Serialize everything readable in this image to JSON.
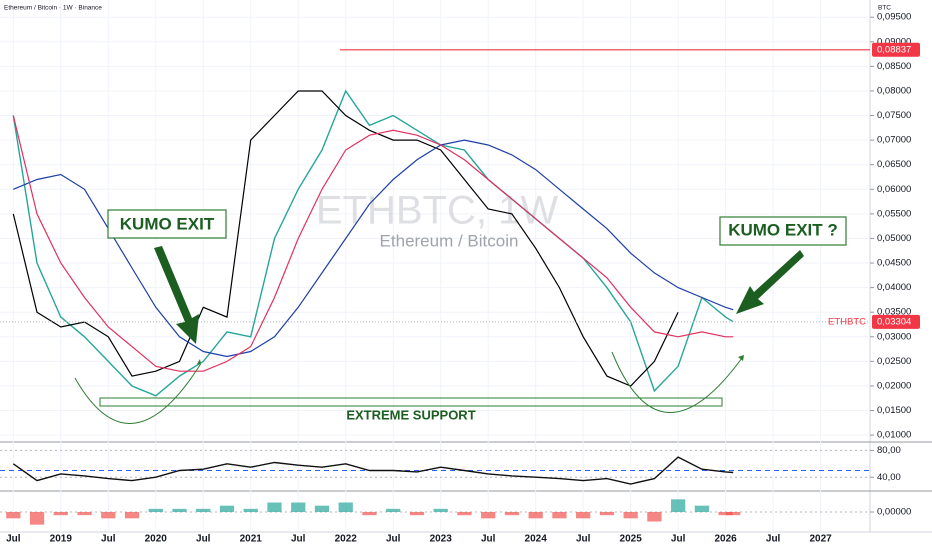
{
  "header": {
    "title": "Ethereum / Bitcoin · 1W · Binance",
    "unit": "BTC",
    "watermark": "ETHBTC, 1W",
    "watermark_subtitle": "Ethereum / Bitcoin"
  },
  "annotations": {
    "left": "KUMO EXIT",
    "right": "KUMO EXIT ?",
    "support": "EXTREME SUPPORT"
  },
  "chart_data": [
    {
      "type": "line",
      "x": [
        2018.5,
        2018.75,
        2019,
        2019.25,
        2019.5,
        2019.75,
        2020,
        2020.25,
        2020.5,
        2020.75,
        2021,
        2021.25,
        2021.5,
        2021.75,
        2022,
        2022.25,
        2022.5,
        2022.75,
        2023,
        2023.25,
        2023.5,
        2023.75,
        2024,
        2024.25,
        2024.5,
        2024.75,
        2025,
        2025.25,
        2025.5,
        2025.75,
        2026,
        2026.08
      ],
      "series": [
        {
          "name": "ETHBTC",
          "color": "#26a69a",
          "values": [
            0.075,
            0.045,
            0.034,
            0.03,
            0.025,
            0.02,
            0.018,
            0.022,
            0.025,
            0.031,
            0.03,
            0.05,
            0.06,
            0.068,
            0.08,
            0.073,
            0.075,
            0.072,
            0.069,
            0.068,
            0.062,
            0.058,
            0.054,
            0.05,
            0.046,
            0.04,
            0.033,
            0.019,
            0.024,
            0.038,
            0.034,
            0.03304
          ]
        },
        {
          "color": "#000000",
          "values": [
            0.055,
            0.035,
            0.032,
            0.033,
            0.03,
            0.022,
            0.023,
            0.025,
            0.036,
            0.034,
            0.07,
            0.075,
            0.08,
            0.08,
            0.075,
            0.072,
            0.07,
            0.07,
            0.068,
            0.062,
            0.056,
            0.055,
            0.048,
            0.04,
            0.03,
            0.022,
            0.02,
            0.025,
            0.035,
            null,
            null,
            null
          ]
        },
        {
          "color": "#1e3fa8",
          "values": [
            0.06,
            0.062,
            0.063,
            0.06,
            0.052,
            0.044,
            0.036,
            0.03,
            0.027,
            0.026,
            0.027,
            0.03,
            0.036,
            0.043,
            0.05,
            0.057,
            0.062,
            0.066,
            0.069,
            0.07,
            0.069,
            0.067,
            0.064,
            0.06,
            0.056,
            0.052,
            0.047,
            0.043,
            0.04,
            0.038,
            0.036,
            0.0355
          ]
        },
        {
          "color": "#e0315e",
          "values": [
            0.075,
            0.055,
            0.045,
            0.038,
            0.032,
            0.028,
            0.024,
            0.023,
            0.023,
            0.025,
            0.028,
            0.038,
            0.05,
            0.06,
            0.068,
            0.071,
            0.072,
            0.071,
            0.069,
            0.066,
            0.062,
            0.058,
            0.054,
            0.05,
            0.046,
            0.042,
            0.036,
            0.031,
            0.03,
            0.031,
            0.03,
            0.03
          ]
        }
      ],
      "xlim": [
        2018.36,
        2027.52
      ],
      "xticks": [
        {
          "value": 2018.5,
          "label": "Jul"
        },
        2019,
        {
          "value": 2019.5,
          "label": "Jul"
        },
        2020,
        {
          "value": 2020.5,
          "label": "Jul"
        },
        2021,
        {
          "value": 2021.5,
          "label": "Jul"
        },
        2022,
        {
          "value": 2022.5,
          "label": "Jul"
        },
        2023,
        {
          "value": 2023.5,
          "label": "Jul"
        },
        2024,
        {
          "value": 2024.5,
          "label": "Jul"
        },
        2025,
        {
          "value": 2025.5,
          "label": "Jul"
        },
        2026,
        {
          "value": 2026.5,
          "label": "Jul"
        },
        2027
      ],
      "ylim": [
        0.0086,
        0.0985
      ],
      "yticks": [
        {
          "value": 0.01,
          "label": "0,01000"
        },
        {
          "value": 0.015,
          "label": "0,01500"
        },
        {
          "value": 0.02,
          "label": "0,02000"
        },
        {
          "value": 0.025,
          "label": "0,02500"
        },
        {
          "value": 0.03,
          "label": "0,03000"
        },
        {
          "value": 0.035,
          "label": "0,03500"
        },
        {
          "value": 0.04,
          "label": "0,04000"
        },
        {
          "value": 0.045,
          "label": "0,04500"
        },
        {
          "value": 0.05,
          "label": "0,05000"
        },
        {
          "value": 0.055,
          "label": "0,05500"
        },
        {
          "value": 0.06,
          "label": "0,06000"
        },
        {
          "value": 0.065,
          "label": "0,06500"
        },
        {
          "value": 0.07,
          "label": "0,07000"
        },
        {
          "value": 0.075,
          "label": "0,07500"
        },
        {
          "value": 0.08,
          "label": "0,08000"
        },
        {
          "value": 0.085,
          "label": "0,08500"
        },
        {
          "value": 0.09,
          "label": "0,09000"
        },
        {
          "value": 0.095,
          "label": "0,09500"
        }
      ],
      "reference_line": {
        "value": 0.08837,
        "label": "0,08837",
        "x_start": 2021.94,
        "color": "#f23645"
      },
      "price_line": {
        "value": 0.03304,
        "label": "0,03304",
        "color": "#f23645"
      }
    },
    {
      "type": "line",
      "x": [
        2018.5,
        2018.75,
        2019,
        2019.25,
        2019.5,
        2019.75,
        2020,
        2020.25,
        2020.5,
        2020.75,
        2021,
        2021.25,
        2021.5,
        2021.75,
        2022,
        2022.25,
        2022.5,
        2022.75,
        2023,
        2023.25,
        2023.5,
        2023.75,
        2024,
        2024.25,
        2024.5,
        2024.75,
        2025,
        2025.25,
        2025.5,
        2025.75,
        2026,
        2026.08
      ],
      "series": [
        {
          "color": "#111111",
          "values": [
            60,
            35,
            45,
            42,
            38,
            35,
            40,
            50,
            52,
            60,
            55,
            62,
            58,
            55,
            60,
            50,
            50,
            48,
            55,
            50,
            45,
            42,
            40,
            38,
            35,
            38,
            30,
            38,
            70,
            52,
            48,
            47
          ]
        }
      ],
      "ylim": [
        21,
        91
      ],
      "yticks": [
        {
          "value": 80,
          "label": "80,00"
        },
        {
          "value": 40,
          "label": "40,00"
        }
      ],
      "midline": 50
    },
    {
      "type": "bar",
      "x": [
        2018.5,
        2018.75,
        2019,
        2019.25,
        2019.5,
        2019.75,
        2020,
        2020.25,
        2020.5,
        2020.75,
        2021,
        2021.25,
        2021.5,
        2021.75,
        2022,
        2022.25,
        2022.5,
        2022.75,
        2023,
        2023.25,
        2023.5,
        2023.75,
        2024,
        2024.25,
        2024.5,
        2024.75,
        2025,
        2025.25,
        2025.5,
        2025.75,
        2026,
        2026.08
      ],
      "values": [
        -0.002,
        -0.004,
        -0.001,
        -0.001,
        -0.002,
        -0.002,
        0.001,
        0.001,
        0.001,
        0.002,
        0.001,
        0.003,
        0.003,
        0.002,
        0.003,
        -0.001,
        0.001,
        -0.001,
        0.001,
        -0.001,
        -0.002,
        -0.001,
        -0.002,
        -0.002,
        -0.002,
        -0.001,
        -0.002,
        -0.003,
        0.004,
        0.002,
        -0.001,
        -0.001
      ],
      "colors": {
        "up": "#26a69a",
        "down": "#ef5350"
      },
      "ylim": [
        -0.006,
        0.006
      ],
      "yticks": [
        {
          "value": 0,
          "label": "0,00000"
        }
      ]
    }
  ]
}
